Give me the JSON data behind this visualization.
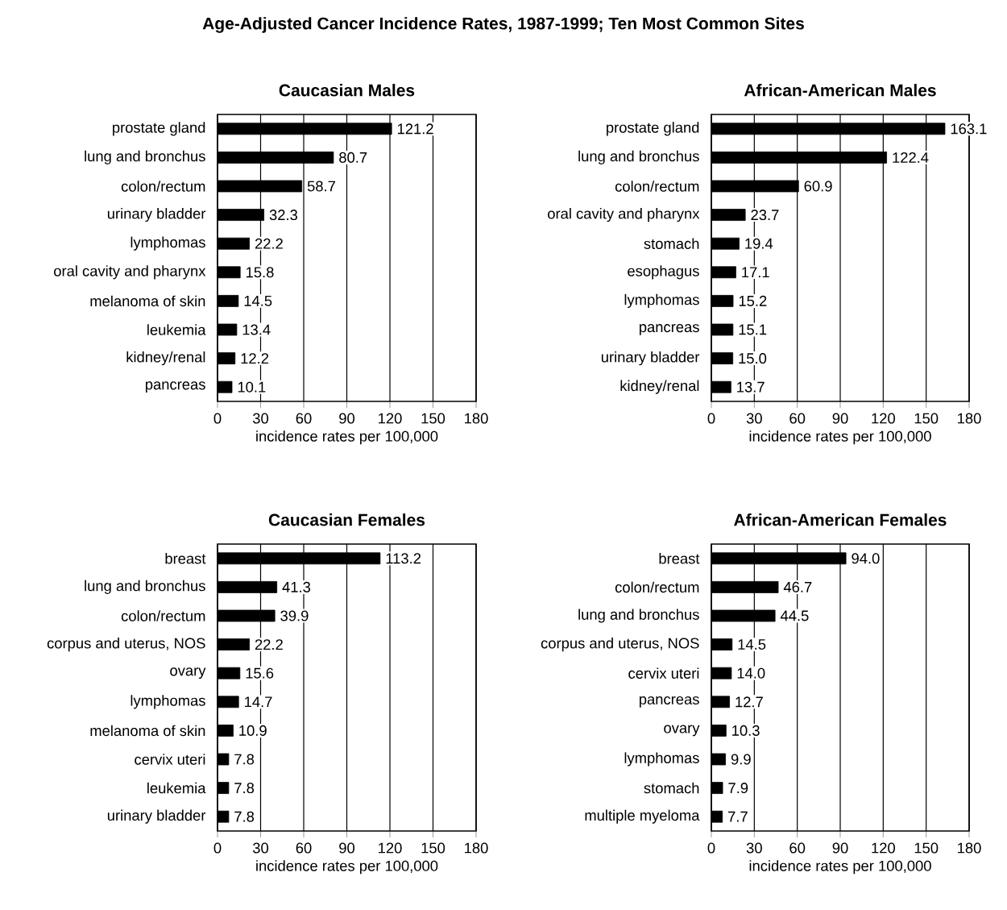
{
  "chart_data": [
    {
      "type": "bar",
      "orientation": "horizontal",
      "title": "Age-Adjusted Cancer Incidence Rates, 1987-1999; Ten Most Common Sites",
      "subtitle": "Caucasian Males",
      "xlabel": "incidence rates per 100,000",
      "color": "#000000",
      "grid": "x",
      "xlim": [
        0,
        180
      ],
      "xticks": [
        0,
        30,
        60,
        90,
        120,
        150,
        180
      ],
      "categories": [
        "prostate gland",
        "lung and bronchus",
        "colon/rectum",
        "urinary bladder",
        "lymphomas",
        "oral cavity and pharynx",
        "melanoma of skin",
        "leukemia",
        "kidney/renal",
        "pancreas"
      ],
      "values": [
        121.2,
        80.7,
        58.7,
        32.3,
        22.2,
        15.8,
        14.5,
        13.4,
        12.2,
        10.1
      ],
      "value_labels": [
        "121.2",
        "80.7",
        "58.7",
        "32.3",
        "22.2",
        "15.8",
        "14.5",
        "13.4",
        "12.2",
        "10.1"
      ]
    },
    {
      "type": "bar",
      "orientation": "horizontal",
      "subtitle": "African-American Males",
      "xlabel": "incidence rates per 100,000",
      "color": "#000000",
      "grid": "x",
      "xlim": [
        0,
        180
      ],
      "xticks": [
        0,
        30,
        60,
        90,
        120,
        150,
        180
      ],
      "categories": [
        "prostate gland",
        "lung and bronchus",
        "colon/rectum",
        "oral cavity and pharynx",
        "stomach",
        "esophagus",
        "lymphomas",
        "pancreas",
        "urinary bladder",
        "kidney/renal"
      ],
      "values": [
        163.1,
        122.4,
        60.9,
        23.7,
        19.4,
        17.1,
        15.2,
        15.1,
        15.0,
        13.7
      ],
      "value_labels": [
        "163.1",
        "122.4",
        "60.9",
        "23.7",
        "19.4",
        "17.1",
        "15.2",
        "15.1",
        "15.0",
        "13.7"
      ]
    },
    {
      "type": "bar",
      "orientation": "horizontal",
      "subtitle": "Caucasian Females",
      "xlabel": "incidence rates per 100,000",
      "color": "#000000",
      "grid": "x",
      "xlim": [
        0,
        180
      ],
      "xticks": [
        0,
        30,
        60,
        90,
        120,
        150,
        180
      ],
      "categories": [
        "breast",
        "lung and bronchus",
        "colon/rectum",
        "corpus and uterus, NOS",
        "ovary",
        "lymphomas",
        "melanoma of skin",
        "cervix uteri",
        "leukemia",
        "urinary bladder"
      ],
      "values": [
        113.2,
        41.3,
        39.9,
        22.2,
        15.6,
        14.7,
        10.9,
        7.8,
        7.8,
        7.8
      ],
      "value_labels": [
        "113.2",
        "41.3",
        "39.9",
        "22.2",
        "15.6",
        "14.7",
        "10.9",
        "7.8",
        "7.8",
        "7.8"
      ]
    },
    {
      "type": "bar",
      "orientation": "horizontal",
      "subtitle": "African-American Females",
      "xlabel": "incidence rates per 100,000",
      "color": "#000000",
      "grid": "x",
      "xlim": [
        0,
        180
      ],
      "xticks": [
        0,
        30,
        60,
        90,
        120,
        150,
        180
      ],
      "categories": [
        "breast",
        "colon/rectum",
        "lung and bronchus",
        "corpus and uterus, NOS",
        "cervix uteri",
        "pancreas",
        "ovary",
        "lymphomas",
        "stomach",
        "multiple myeloma"
      ],
      "values": [
        94.0,
        46.7,
        44.5,
        14.5,
        14.0,
        12.7,
        10.3,
        9.9,
        7.9,
        7.7
      ],
      "value_labels": [
        "94.0",
        "46.7",
        "44.5",
        "14.5",
        "14.0",
        "12.7",
        "10.3",
        "9.9",
        "7.9",
        "7.7"
      ]
    }
  ]
}
